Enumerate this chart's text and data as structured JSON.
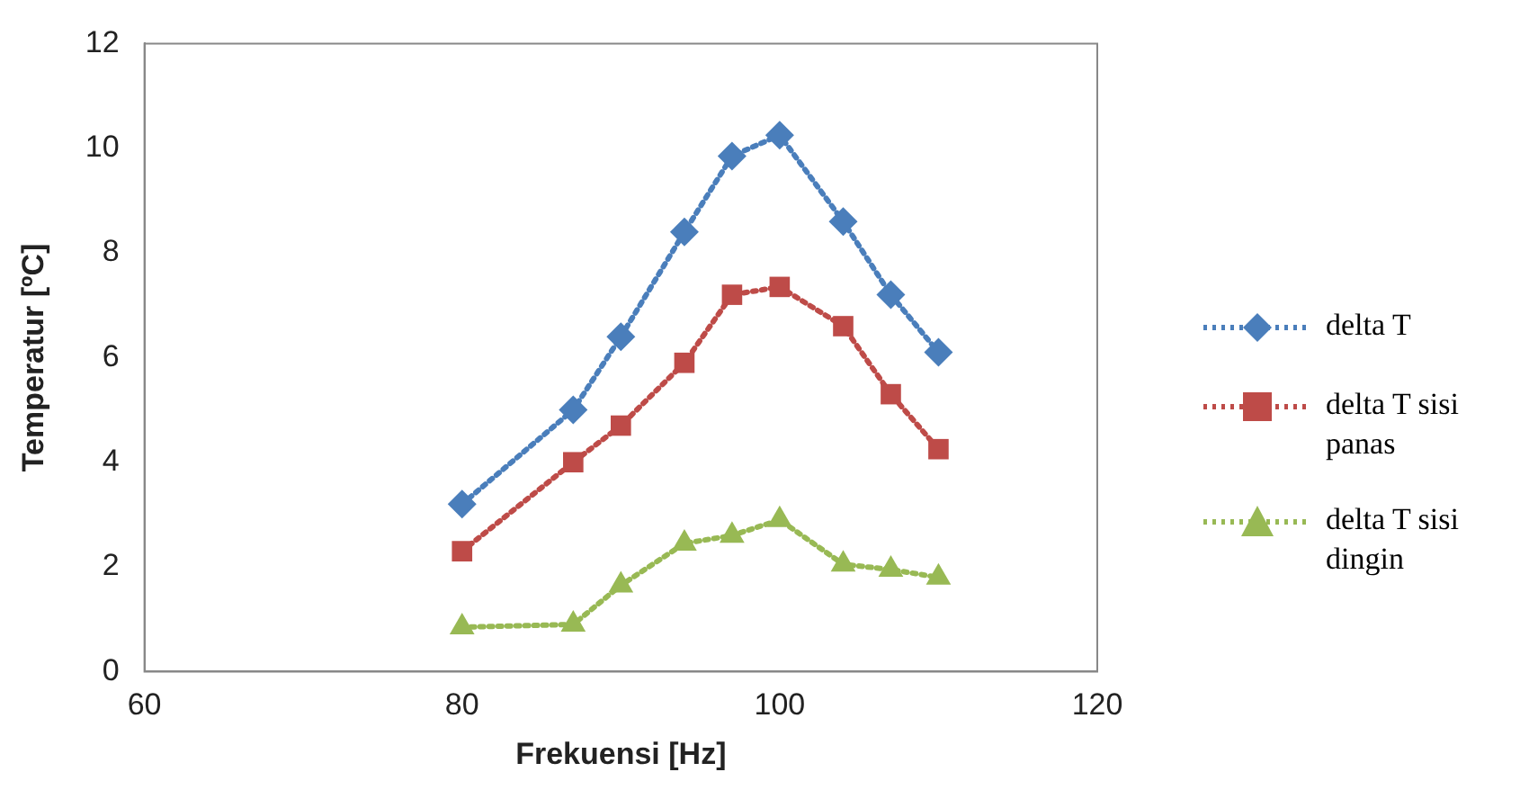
{
  "chart_data": {
    "type": "line",
    "xlabel": "Frekuensi [Hz]",
    "ylabel": "Temperatur [ºC]",
    "x": [
      80,
      87,
      90,
      94,
      97,
      100,
      104,
      107,
      110
    ],
    "xlim": [
      60,
      120
    ],
    "xticks": [
      60,
      80,
      100,
      120
    ],
    "ylim": [
      0,
      12
    ],
    "yticks": [
      0,
      2,
      4,
      6,
      8,
      10,
      12
    ],
    "grid": false,
    "legend": "right",
    "line_style": "dotted",
    "series": [
      {
        "name": "delta T",
        "color": "#4a7ebb",
        "marker": "diamond",
        "values": [
          3.2,
          5.0,
          6.4,
          8.4,
          9.85,
          10.25,
          8.6,
          7.2,
          6.1
        ]
      },
      {
        "name": "delta T sisi panas",
        "color": "#be4b48",
        "marker": "square",
        "values": [
          2.3,
          4.0,
          4.7,
          5.9,
          7.2,
          7.35,
          6.6,
          5.3,
          4.25
        ]
      },
      {
        "name": "delta T sisi dingin",
        "color": "#98b954",
        "marker": "triangle",
        "values": [
          0.85,
          0.9,
          1.65,
          2.45,
          2.6,
          2.9,
          2.05,
          1.95,
          1.8
        ]
      }
    ]
  }
}
